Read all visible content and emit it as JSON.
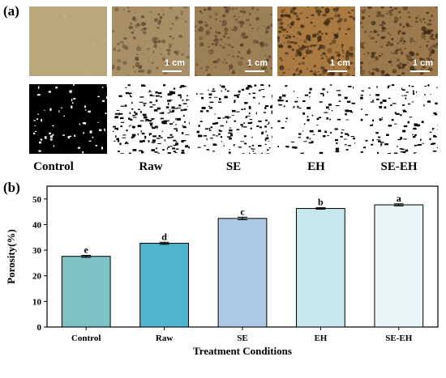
{
  "panels": {
    "a_label": "(a)",
    "b_label": "(b)"
  },
  "images": {
    "conditions": [
      "Control",
      "Raw",
      "SE",
      "EH",
      "SE-EH"
    ],
    "scale_label": "1 cm",
    "photo_colors": [
      "#b8a77a",
      "#a88f66",
      "#9c7f55",
      "#a97b42",
      "#9c7a4d"
    ],
    "pore_colors": [
      "#c2b487",
      "#5f4a30",
      "#5a4128",
      "#3b260f",
      "#402a14"
    ]
  },
  "chart_data": {
    "type": "bar",
    "categories": [
      "Control",
      "Raw",
      "SE",
      "EH",
      "SE-EH"
    ],
    "values": [
      27.6,
      32.7,
      42.4,
      46.3,
      47.7
    ],
    "errors": [
      0.4,
      0.4,
      0.5,
      0.3,
      0.4
    ],
    "significance": [
      "e",
      "d",
      "c",
      "b",
      "a"
    ],
    "bar_colors": [
      "#7fc2c6",
      "#4db6cc",
      "#adc8e6",
      "#c6e6ec",
      "#e8f5f6"
    ],
    "xlabel": "Treatment Conditions",
    "ylabel": "Porosity(%)",
    "ylim": [
      0,
      55
    ],
    "yticks": [
      0,
      10,
      20,
      30,
      40,
      50
    ]
  }
}
